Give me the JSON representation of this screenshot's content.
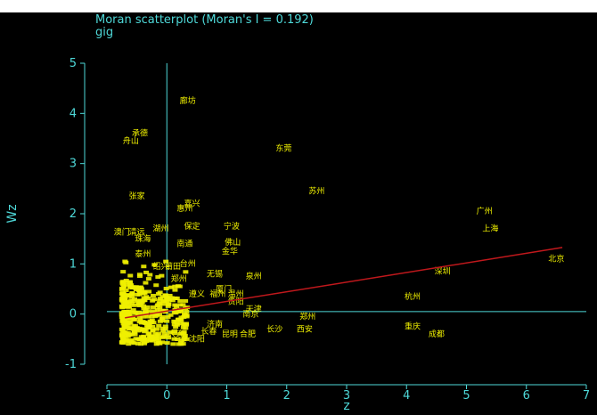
{
  "colors": {
    "background": "#000000",
    "axis": "#4ed8d8",
    "points": "#f0f000",
    "fit_line": "#c0181c",
    "ref_lines": "#4ed8d8"
  },
  "chart_data": {
    "type": "scatter",
    "title": "Moran scatterplot (Moran's I = 0.192)",
    "subtitle": "gig",
    "xlabel": "z",
    "ylabel": "Wz",
    "xlim": [
      -1,
      7
    ],
    "ylim": [
      -1,
      5
    ],
    "xticks": [
      "-1",
      "0",
      "1",
      "2",
      "3",
      "4",
      "5",
      "6",
      "7"
    ],
    "yticks": [
      "-1",
      "0",
      "1",
      "2",
      "3",
      "4",
      "5"
    ],
    "grid": false,
    "reference_lines": {
      "x": 0,
      "y": 0.05
    },
    "fit_line": {
      "slope": 0.192,
      "intercept": 0.06,
      "x_range": [
        -0.7,
        6.6
      ]
    },
    "labeled_points": [
      {
        "label": "廊坊",
        "x": 0.35,
        "y": 4.2
      },
      {
        "label": "承德",
        "x": -0.45,
        "y": 3.55
      },
      {
        "label": "舟山",
        "x": -0.6,
        "y": 3.4
      },
      {
        "label": "东莞",
        "x": 1.95,
        "y": 3.25
      },
      {
        "label": "苏州",
        "x": 2.5,
        "y": 2.4
      },
      {
        "label": "张家",
        "x": -0.5,
        "y": 2.3
      },
      {
        "label": "嘉兴",
        "x": 0.42,
        "y": 2.15
      },
      {
        "label": "惠州",
        "x": 0.3,
        "y": 2.05
      },
      {
        "label": "广州",
        "x": 5.3,
        "y": 2.0
      },
      {
        "label": "保定",
        "x": 0.42,
        "y": 1.7
      },
      {
        "label": "宁波",
        "x": 1.08,
        "y": 1.7
      },
      {
        "label": "湖州",
        "x": -0.1,
        "y": 1.65
      },
      {
        "label": "上海",
        "x": 5.4,
        "y": 1.65
      },
      {
        "label": "澳门",
        "x": -0.75,
        "y": 1.58
      },
      {
        "label": "清远",
        "x": -0.5,
        "y": 1.58
      },
      {
        "label": "珠海",
        "x": -0.4,
        "y": 1.45
      },
      {
        "label": "佛山",
        "x": 1.1,
        "y": 1.38
      },
      {
        "label": "南通",
        "x": 0.3,
        "y": 1.35
      },
      {
        "label": "金华",
        "x": 1.05,
        "y": 1.2
      },
      {
        "label": "泰州",
        "x": -0.4,
        "y": 1.15
      },
      {
        "label": "北京",
        "x": 6.5,
        "y": 1.05
      },
      {
        "label": "台州",
        "x": 0.35,
        "y": 0.95
      },
      {
        "label": "莆田",
        "x": 0.1,
        "y": 0.9
      },
      {
        "label": "绍兴",
        "x": -0.1,
        "y": 0.9
      },
      {
        "label": "深圳",
        "x": 4.6,
        "y": 0.8
      },
      {
        "label": "无锡",
        "x": 0.8,
        "y": 0.75
      },
      {
        "label": "泉州",
        "x": 1.45,
        "y": 0.7
      },
      {
        "label": "郑州",
        "x": 0.2,
        "y": 0.65
      },
      {
        "label": "遵义",
        "x": 0.5,
        "y": 0.35
      },
      {
        "label": "福州",
        "x": 0.85,
        "y": 0.35
      },
      {
        "label": "温州",
        "x": 1.15,
        "y": 0.35
      },
      {
        "label": "杭州",
        "x": 4.1,
        "y": 0.3
      },
      {
        "label": "厦门",
        "x": 0.95,
        "y": 0.45
      },
      {
        "label": "贵阳",
        "x": 1.15,
        "y": 0.2
      },
      {
        "label": "天津",
        "x": 1.45,
        "y": 0.05
      },
      {
        "label": "南京",
        "x": 1.4,
        "y": -0.05
      },
      {
        "label": "郑州",
        "x": 2.35,
        "y": -0.1
      },
      {
        "label": "长沙",
        "x": 1.8,
        "y": -0.35
      },
      {
        "label": "西安",
        "x": 2.3,
        "y": -0.35
      },
      {
        "label": "重庆",
        "x": 4.1,
        "y": -0.3
      },
      {
        "label": "成都",
        "x": 4.5,
        "y": -0.45
      },
      {
        "label": "长春",
        "x": 0.7,
        "y": -0.4
      },
      {
        "label": "昆明",
        "x": 1.05,
        "y": -0.45
      },
      {
        "label": "合肥",
        "x": 1.35,
        "y": -0.45
      },
      {
        "label": "济南",
        "x": 0.8,
        "y": -0.25
      },
      {
        "label": "大连",
        "x": 0.15,
        "y": -0.45
      },
      {
        "label": "沈阳",
        "x": 0.5,
        "y": -0.55
      }
    ]
  }
}
